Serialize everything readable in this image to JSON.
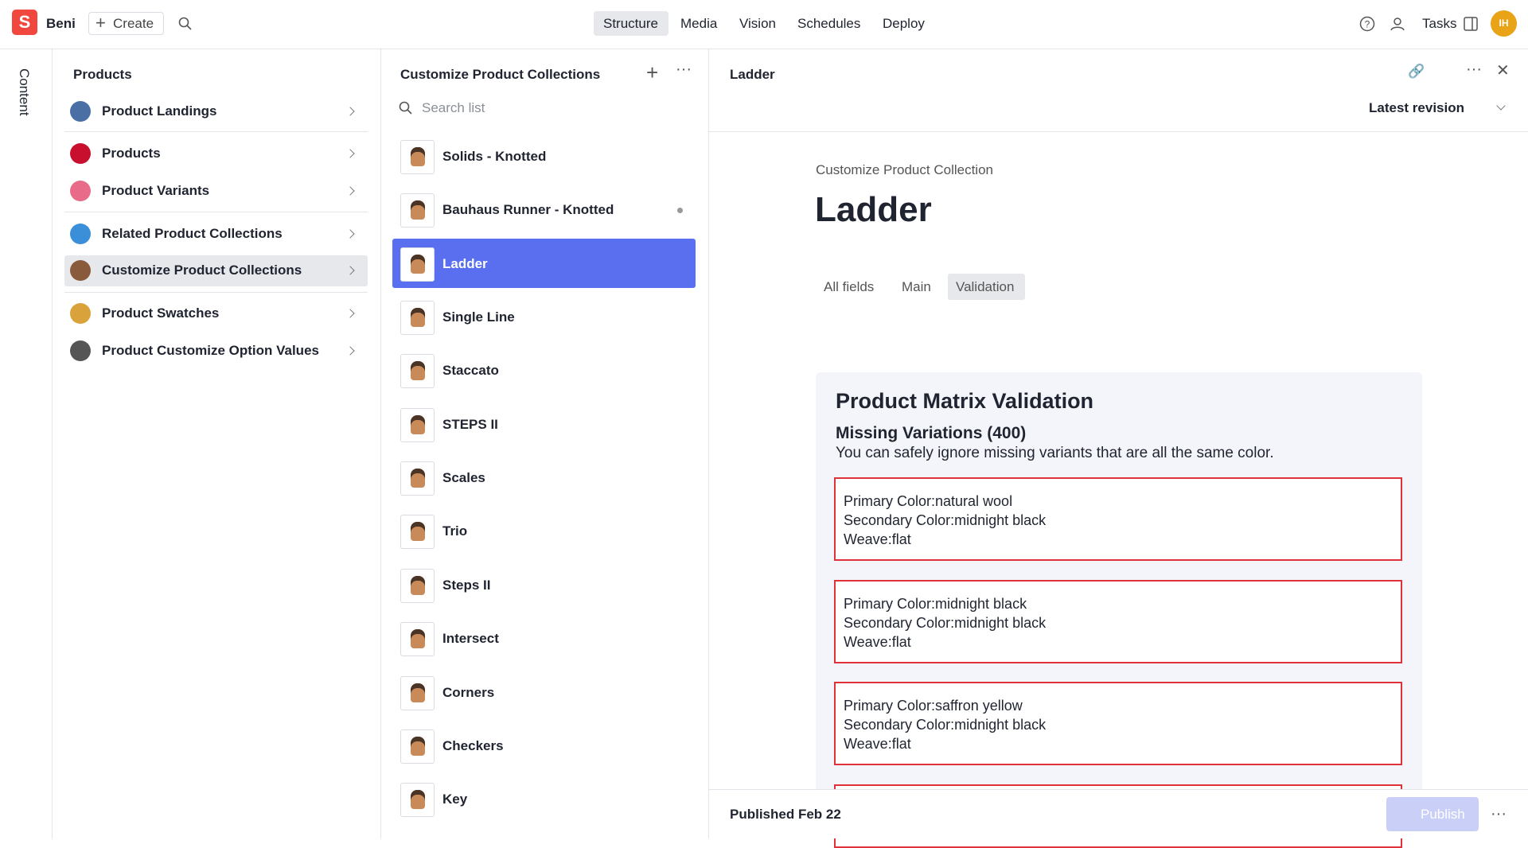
{
  "topbar": {
    "workspace": "Beni",
    "create": "Create",
    "nav": [
      "Structure",
      "Media",
      "Vision",
      "Schedules",
      "Deploy"
    ],
    "tasks": "Tasks",
    "avatar": "IH"
  },
  "sidebar": {
    "tab": "Content"
  },
  "structure": {
    "title": "Products",
    "items": [
      "Product Landings",
      "Products",
      "Product Variants",
      "Related Product Collections",
      "Customize Product Collections",
      "Product Swatches",
      "Product Customize Option Values"
    ]
  },
  "list": {
    "title": "Customize Product Collections",
    "search_placeholder": "Search list",
    "items": [
      "Solids - Knotted",
      "Bauhaus Runner - Knotted",
      "Ladder",
      "Single Line",
      "Staccato",
      "STEPS II",
      "Scales",
      "Trio",
      "Steps II",
      "Intersect",
      "Corners",
      "Checkers",
      "Key"
    ]
  },
  "document": {
    "header": "Ladder",
    "revision": "Latest revision",
    "type": "Customize Product Collection",
    "title": "Ladder",
    "tabs": [
      "All fields",
      "Main",
      "Validation"
    ],
    "validation": {
      "title": "Product Matrix Validation",
      "subtitle": "Missing Variations (400)",
      "note": "You can safely ignore missing variants that are all the same color.",
      "variations": [
        [
          "Primary Color:natural wool",
          "Secondary Color:midnight black",
          "Weave:flat"
        ],
        [
          "Primary Color:midnight black",
          "Secondary Color:midnight black",
          "Weave:flat"
        ],
        [
          "Primary Color:saffron yellow",
          "Secondary Color:midnight black",
          "Weave:flat"
        ]
      ]
    },
    "status": "Published Feb 22",
    "publish": "Publish"
  }
}
